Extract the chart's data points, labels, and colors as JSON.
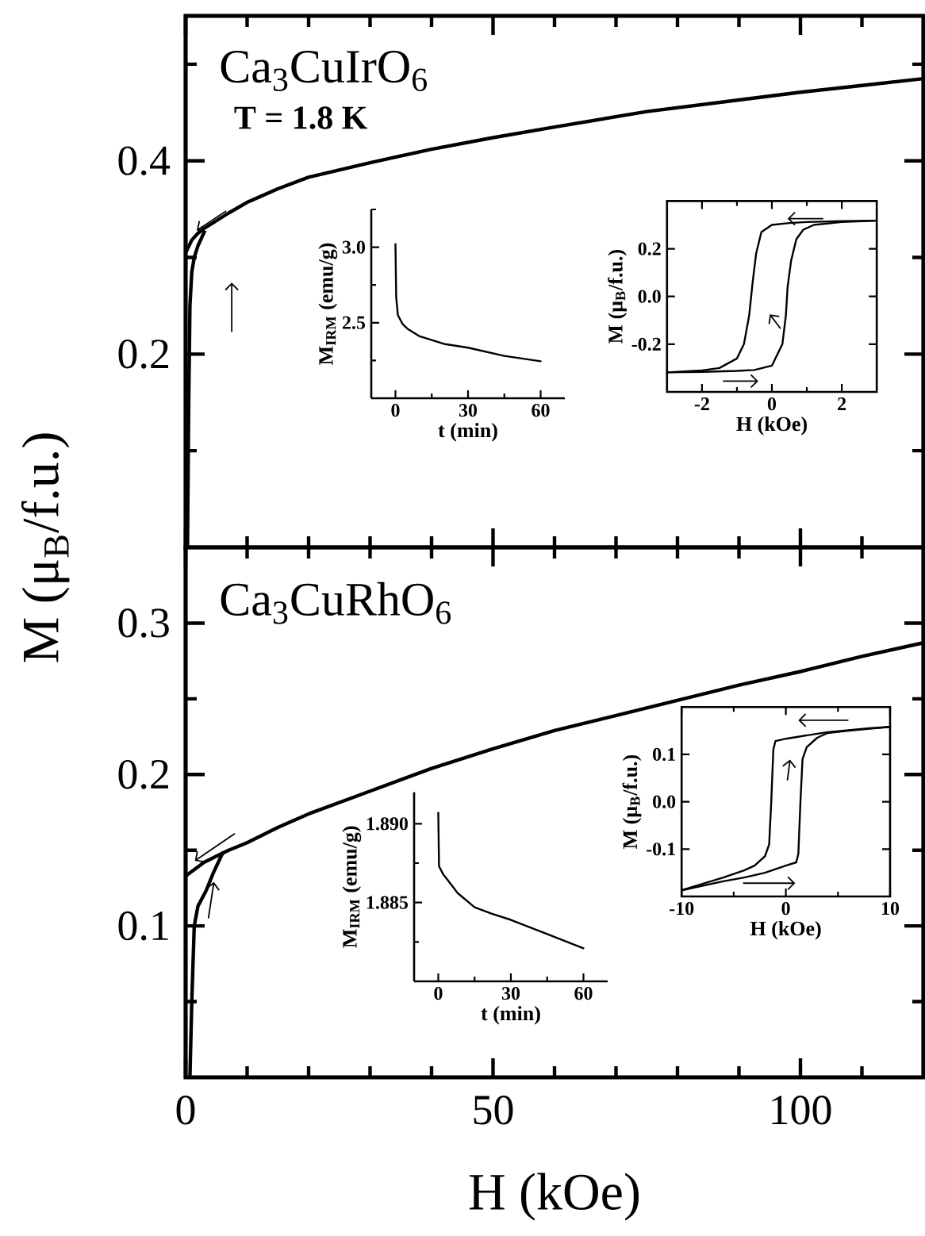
{
  "chart_data": [
    {
      "type": "line",
      "xlim": [
        0,
        120
      ],
      "ylim": [
        0,
        0.55
      ],
      "xticks": [
        0,
        {
          "value": 10,
          "label": null
        },
        {
          "value": 20,
          "label": null
        },
        {
          "value": 30,
          "label": null
        },
        {
          "value": 40,
          "label": null
        },
        50,
        {
          "value": 60,
          "label": null
        },
        {
          "value": 70,
          "label": null
        },
        {
          "value": 80,
          "label": null
        },
        {
          "value": 90,
          "label": null
        },
        100,
        {
          "value": 110,
          "label": null
        }
      ],
      "yticks": [
        {
          "value": 0.1,
          "label": null
        },
        0.2,
        {
          "value": 0.3,
          "label": null
        },
        0.4,
        {
          "value": 0.5,
          "label": null
        }
      ],
      "tick_labels": "y",
      "annotations": [
        "Ca$_{3}$CuIrO$_{6}$",
        "T = 1.8 K"
      ],
      "series": [
        {
          "color": "#000000",
          "x": [
            0,
            1,
            2,
            3,
            5,
            7,
            10,
            15,
            20,
            30,
            40,
            50,
            60,
            75,
            90,
            100,
            110,
            120
          ],
          "values": [
            0.305,
            0.318,
            0.325,
            0.33,
            0.338,
            0.346,
            0.357,
            0.371,
            0.383,
            0.398,
            0.412,
            0.424,
            0.435,
            0.451,
            0.463,
            0.471,
            0.478,
            0.485
          ]
        },
        {
          "color": "#000000",
          "x": [
            0.3,
            0.5,
            0.7,
            1.0,
            1.4,
            2.0,
            3.0
          ],
          "values": [
            0,
            0.15,
            0.25,
            0.285,
            0.3,
            0.312,
            0.326
          ]
        }
      ]
    },
    {
      "type": "line",
      "xlim": [
        -10,
        70
      ],
      "ylim": [
        2.0,
        3.25
      ],
      "xticks": [
        0,
        {
          "value": 15,
          "label": null
        },
        30,
        {
          "value": 45,
          "label": null
        },
        60
      ],
      "yticks": [
        {
          "value": 2.25,
          "label": null
        },
        2.5,
        {
          "value": 2.75,
          "label": null
        },
        {
          "value": 3,
          "label": "3.0"
        },
        {
          "value": 3.25,
          "label": null
        }
      ],
      "xlabel": "t (min)",
      "ylabel": "M$_{IRM}$ (emu/g)",
      "series": [
        {
          "color": "#000000",
          "x": [
            0,
            0.3,
            1,
            3,
            5,
            10,
            15,
            20,
            30,
            45,
            60
          ],
          "values": [
            3.02,
            2.67,
            2.55,
            2.49,
            2.46,
            2.41,
            2.385,
            2.36,
            2.335,
            2.28,
            2.245
          ]
        }
      ]
    },
    {
      "type": "line",
      "xlim": [
        -3,
        3
      ],
      "ylim": [
        -0.4,
        0.4
      ],
      "xticks": [
        -2,
        {
          "value": -1,
          "label": null
        },
        0,
        {
          "value": 1,
          "label": null
        },
        2
      ],
      "yticks": [
        -0.2,
        {
          "value": 0,
          "label": "0.0"
        },
        0.2
      ],
      "xlabel": "H (kOe)",
      "ylabel": "M (μ$_{B}$/f.u.)",
      "series": [
        {
          "color": "#000000",
          "x": [
            3,
            2,
            1,
            0.5,
            0,
            -0.3,
            -0.45,
            -0.55,
            -0.65,
            -0.8,
            -1.0,
            -1.5,
            -2,
            -3
          ],
          "values": [
            0.318,
            0.316,
            0.312,
            0.308,
            0.3,
            0.27,
            0.18,
            0.06,
            -0.08,
            -0.2,
            -0.26,
            -0.3,
            -0.31,
            -0.318
          ]
        },
        {
          "color": "#000000",
          "x": [
            -3,
            -2,
            -1,
            -0.5,
            0,
            0.3,
            0.4,
            0.45,
            0.55,
            0.7,
            0.9,
            1.2,
            2,
            3
          ],
          "values": [
            -0.318,
            -0.316,
            -0.312,
            -0.308,
            -0.29,
            -0.2,
            -0.08,
            0.04,
            0.15,
            0.24,
            0.28,
            0.3,
            0.312,
            0.318
          ]
        }
      ]
    },
    {
      "type": "line",
      "xlim": [
        0,
        120
      ],
      "ylim": [
        0,
        0.35
      ],
      "xticks": [
        0,
        {
          "value": 10,
          "label": null
        },
        {
          "value": 20,
          "label": null
        },
        {
          "value": 30,
          "label": null
        },
        {
          "value": 40,
          "label": null
        },
        50,
        {
          "value": 60,
          "label": null
        },
        {
          "value": 70,
          "label": null
        },
        {
          "value": 80,
          "label": null
        },
        {
          "value": 90,
          "label": null
        },
        100,
        {
          "value": 110,
          "label": null
        }
      ],
      "yticks": [
        {
          "value": 0.05,
          "label": null
        },
        0.1,
        {
          "value": 0.15,
          "label": null
        },
        0.2,
        {
          "value": 0.25,
          "label": null
        },
        0.3
      ],
      "xlabel": "H (kOe)",
      "ylabel": "M (μ$_{B}$/f.u.)",
      "annotations": [
        "Ca$_{3}$CuRhO$_{6}$"
      ],
      "series": [
        {
          "color": "#000000",
          "x": [
            0,
            1,
            2,
            3,
            5,
            7,
            10,
            15,
            20,
            30,
            40,
            50,
            60,
            75,
            90,
            100,
            110,
            120
          ],
          "values": [
            0.133,
            0.136,
            0.139,
            0.142,
            0.146,
            0.15,
            0.155,
            0.165,
            0.174,
            0.189,
            0.204,
            0.217,
            0.229,
            0.244,
            0.259,
            0.268,
            0.278,
            0.287
          ]
        },
        {
          "color": "#000000",
          "x": [
            0.7,
            1.0,
            1.4,
            2.0,
            3.3,
            4.5,
            6
          ],
          "values": [
            0,
            0.05,
            0.1,
            0.113,
            0.123,
            0.135,
            0.148
          ]
        }
      ]
    },
    {
      "type": "line",
      "xlim": [
        -10,
        70
      ],
      "ylim": [
        1.88,
        1.892
      ],
      "xticks": [
        0,
        {
          "value": 15,
          "label": null
        },
        30,
        {
          "value": 45,
          "label": null
        },
        60
      ],
      "yticks": [
        {
          "value": 1.8825,
          "label": null
        },
        1.885,
        {
          "value": 1.8875,
          "label": null
        },
        {
          "value": 1.89,
          "label": "1.890"
        }
      ],
      "xlabel": "t (min)",
      "ylabel": "M$_{IRM}$ (emu/g)",
      "series": [
        {
          "color": "#000000",
          "x": [
            0,
            0.3,
            2,
            4,
            8,
            15,
            22,
            30,
            45,
            60
          ],
          "values": [
            1.8907,
            1.8873,
            1.8868,
            1.8864,
            1.8856,
            1.8847,
            1.8843,
            1.8839,
            1.883,
            1.8821
          ]
        }
      ]
    },
    {
      "type": "line",
      "xlim": [
        -10,
        10
      ],
      "ylim": [
        -0.2,
        0.2
      ],
      "xticks": [
        -10,
        {
          "value": -5,
          "label": null
        },
        0,
        {
          "value": 5,
          "label": null
        },
        10
      ],
      "yticks": [
        -0.1,
        {
          "value": 0,
          "label": "0.0"
        },
        0.1
      ],
      "xlabel": "H (kOe)",
      "ylabel": "M (μ$_{B}$/f.u.)",
      "series": [
        {
          "color": "#000000",
          "x": [
            10,
            8,
            6,
            4,
            2,
            0,
            -1,
            -1.2,
            -1.4,
            -1.6,
            -2,
            -3,
            -4,
            -6,
            -10
          ],
          "values": [
            0.158,
            0.155,
            0.151,
            0.147,
            0.14,
            0.133,
            0.128,
            0.11,
            0.0,
            -0.09,
            -0.115,
            -0.135,
            -0.145,
            -0.16,
            -0.187
          ]
        },
        {
          "color": "#000000",
          "x": [
            -10,
            -6,
            -4,
            -2,
            0,
            1,
            1.2,
            1.4,
            1.6,
            2,
            3,
            4,
            6,
            8,
            10
          ],
          "values": [
            -0.187,
            -0.168,
            -0.16,
            -0.15,
            -0.135,
            -0.128,
            -0.11,
            0.0,
            0.09,
            0.115,
            0.135,
            0.145,
            0.15,
            0.154,
            0.158
          ]
        }
      ]
    }
  ]
}
